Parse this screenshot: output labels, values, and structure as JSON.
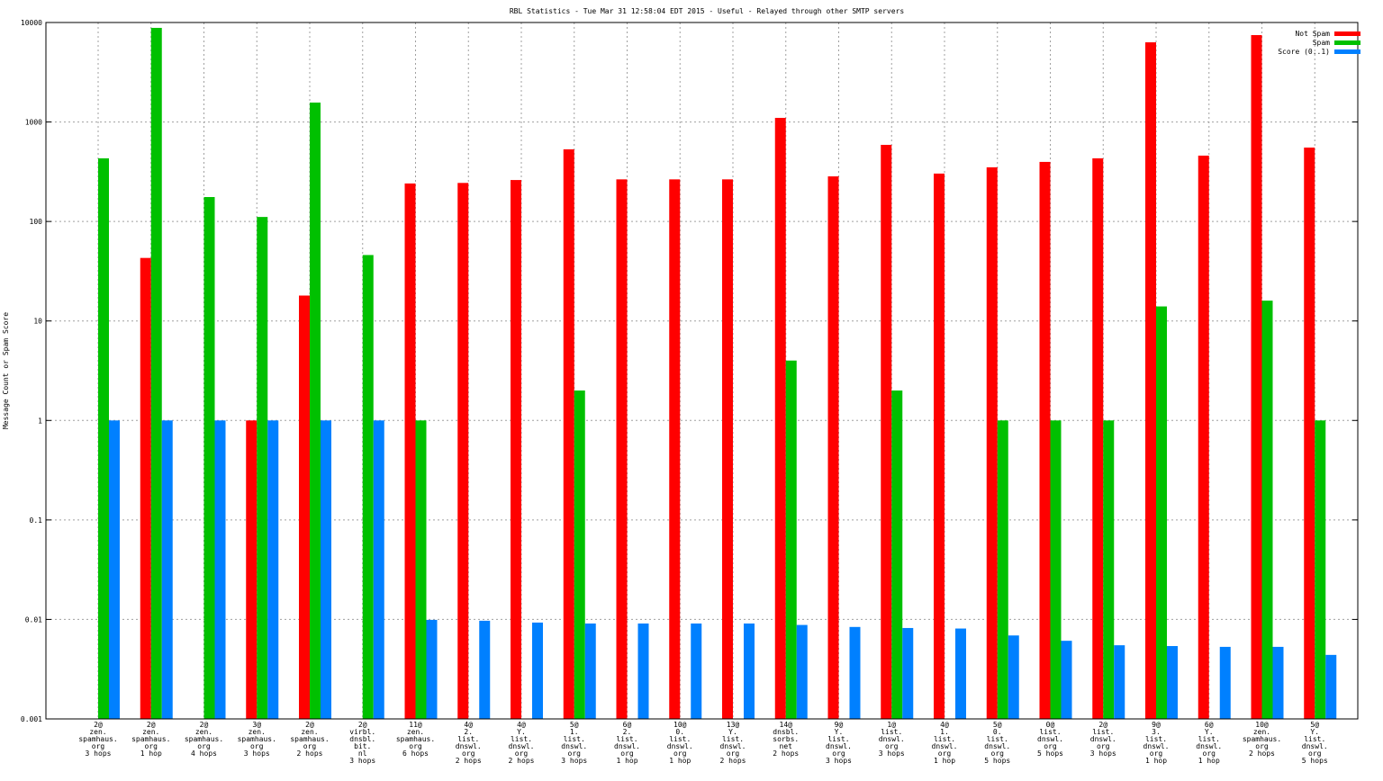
{
  "chart_data": {
    "type": "bar",
    "title": "RBL Statistics - Tue Mar 31 12:58:04 EDT 2015 - Useful - Relayed through other SMTP servers",
    "xlabel": "",
    "ylabel": "Message Count or Spam Score",
    "yscale": "log",
    "ylim": [
      0.001,
      10000
    ],
    "yticks": [
      "10000",
      "1000",
      "100",
      "10",
      "1",
      "0.1",
      "0.01",
      "0.001"
    ],
    "grid": true,
    "legend_position": "top-right",
    "categories": [
      [
        "2@",
        "zen.",
        "spamhaus.",
        "org",
        "3 hops"
      ],
      [
        "2@",
        "zen.",
        "spamhaus.",
        "org",
        "1 hop"
      ],
      [
        "2@",
        "zen.",
        "spamhaus.",
        "org",
        "4 hops"
      ],
      [
        "3@",
        "zen.",
        "spamhaus.",
        "org",
        "3 hops"
      ],
      [
        "2@",
        "zen.",
        "spamhaus.",
        "org",
        "2 hops"
      ],
      [
        "2@",
        "virbl.",
        "dnsbl.",
        "bit.",
        "nl",
        "3 hops"
      ],
      [
        "11@",
        "zen.",
        "spamhaus.",
        "org",
        "6 hops"
      ],
      [
        "4@",
        "2.",
        "list.",
        "dnswl.",
        "org",
        "2 hops"
      ],
      [
        "4@",
        "Y.",
        "list.",
        "dnswl.",
        "org",
        "2 hops"
      ],
      [
        "5@",
        "1.",
        "list.",
        "dnswl.",
        "org",
        "3 hops"
      ],
      [
        "6@",
        "2.",
        "list.",
        "dnswl.",
        "org",
        "1 hop"
      ],
      [
        "10@",
        "0.",
        "list.",
        "dnswl.",
        "org",
        "1 hop"
      ],
      [
        "13@",
        "Y.",
        "list.",
        "dnswl.",
        "org",
        "2 hops"
      ],
      [
        "14@",
        "dnsbl.",
        "sorbs.",
        "net",
        "2 hops"
      ],
      [
        "9@",
        "Y.",
        "list.",
        "dnswl.",
        "org",
        "3 hops"
      ],
      [
        "1@",
        "list.",
        "dnswl.",
        "org",
        "3 hops"
      ],
      [
        "4@",
        "1.",
        "list.",
        "dnswl.",
        "org",
        "1 hop"
      ],
      [
        "5@",
        "0.",
        "list.",
        "dnswl.",
        "org",
        "5 hops"
      ],
      [
        "0@",
        "list.",
        "dnswl.",
        "org",
        "5 hops"
      ],
      [
        "2@",
        "list.",
        "dnswl.",
        "org",
        "3 hops"
      ],
      [
        "9@",
        "3.",
        "list.",
        "dnswl.",
        "org",
        "1 hop"
      ],
      [
        "6@",
        "Y.",
        "list.",
        "dnswl.",
        "org",
        "1 hop"
      ],
      [
        "10@",
        "zen.",
        "spamhaus.",
        "org",
        "2 hops"
      ],
      [
        "5@",
        "Y.",
        "list.",
        "dnswl.",
        "org",
        "5 hops"
      ]
    ],
    "series": [
      {
        "name": "Not Spam",
        "color": "#ff0000",
        "values": [
          null,
          43,
          null,
          1,
          18,
          null,
          241,
          244,
          261,
          531,
          265,
          265,
          265,
          1100,
          284,
          589,
          303,
          350,
          397,
          431,
          6320,
          459,
          7470,
          553
        ]
      },
      {
        "name": "Spam",
        "color": "#00c000",
        "values": [
          431,
          8830,
          176,
          111,
          1567,
          46,
          1,
          null,
          null,
          2,
          null,
          null,
          null,
          4,
          null,
          2,
          null,
          1,
          1,
          1,
          14,
          null,
          16,
          1
        ]
      },
      {
        "name": "Score (0..1)",
        "color": "#0080ff",
        "values": [
          1,
          1,
          1,
          1,
          1,
          1,
          0.0099,
          0.0097,
          0.0093,
          0.0091,
          0.0091,
          0.0091,
          0.0091,
          0.0088,
          0.0084,
          0.0082,
          0.0081,
          0.0069,
          0.0061,
          0.0055,
          0.0054,
          0.0053,
          0.0053,
          0.0044
        ]
      }
    ]
  }
}
